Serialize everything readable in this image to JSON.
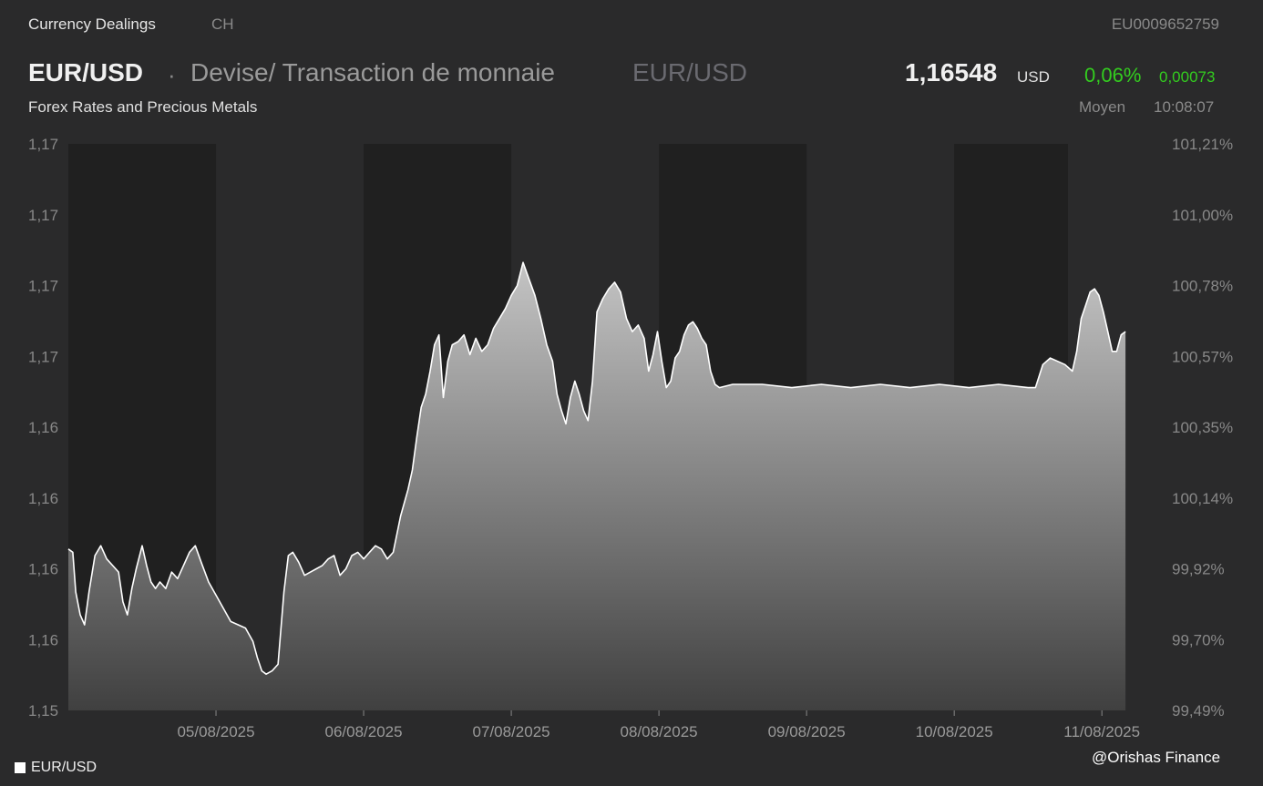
{
  "header": {
    "category": "Currency Dealings",
    "country": "CH",
    "isin": "EU0009652759",
    "pair": "EUR/USD",
    "separator": "·",
    "description": "Devise/ Transaction de monnaie",
    "pair_secondary": "EUR/USD",
    "price": "1,16548",
    "currency": "USD",
    "change_pct": "0,06%",
    "change_abs": "0,00073",
    "subtitle": "Forex Rates and Precious Metals",
    "price_type": "Moyen",
    "time": "10:08:07"
  },
  "legend": {
    "label": "EUR/USD",
    "swatch_color": "#ffffff"
  },
  "credit": "@Orishas Finance",
  "colors": {
    "background": "#2a2a2b",
    "shade": "#202020",
    "positive": "#33cc1f",
    "line": "#ffffff"
  },
  "chart_data": {
    "type": "area",
    "series": [
      {
        "name": "EUR/USD"
      }
    ],
    "left_ticks": [
      "1,17",
      "1,17",
      "1,17",
      "1,17",
      "1,16",
      "1,16",
      "1,16",
      "1,16",
      "1,15"
    ],
    "right_ticks": [
      "101,21%",
      "101,00%",
      "100,78%",
      "100,57%",
      "100,35%",
      "100,14%",
      "99,92%",
      "99,70%",
      "99,49%"
    ],
    "x_ticks": [
      "05/08/2025",
      "06/08/2025",
      "07/08/2025",
      "08/08/2025",
      "09/08/2025",
      "10/08/2025",
      "11/08/2025"
    ],
    "x_domain": [
      0,
      7.4
    ],
    "x_tick_positions": [
      1,
      2,
      3,
      4,
      5,
      6,
      7
    ],
    "y_domain_pct": [
      99.49,
      101.21
    ],
    "shaded_spans": [
      [
        0,
        1
      ],
      [
        2,
        3
      ],
      [
        4,
        5
      ],
      [
        6,
        6.77
      ]
    ],
    "points": [
      [
        0.0,
        99.98
      ],
      [
        0.03,
        99.97
      ],
      [
        0.05,
        99.85
      ],
      [
        0.08,
        99.78
      ],
      [
        0.11,
        99.75
      ],
      [
        0.14,
        99.85
      ],
      [
        0.18,
        99.96
      ],
      [
        0.22,
        99.99
      ],
      [
        0.26,
        99.95
      ],
      [
        0.3,
        99.93
      ],
      [
        0.34,
        99.91
      ],
      [
        0.37,
        99.82
      ],
      [
        0.4,
        99.78
      ],
      [
        0.43,
        99.86
      ],
      [
        0.46,
        99.92
      ],
      [
        0.5,
        99.99
      ],
      [
        0.53,
        99.93
      ],
      [
        0.56,
        99.88
      ],
      [
        0.59,
        99.86
      ],
      [
        0.62,
        99.88
      ],
      [
        0.66,
        99.86
      ],
      [
        0.7,
        99.91
      ],
      [
        0.74,
        99.89
      ],
      [
        0.78,
        99.93
      ],
      [
        0.82,
        99.97
      ],
      [
        0.86,
        99.99
      ],
      [
        0.9,
        99.94
      ],
      [
        0.95,
        99.88
      ],
      [
        1.0,
        99.84
      ],
      [
        1.05,
        99.8
      ],
      [
        1.1,
        99.76
      ],
      [
        1.15,
        99.75
      ],
      [
        1.2,
        99.74
      ],
      [
        1.25,
        99.7
      ],
      [
        1.28,
        99.65
      ],
      [
        1.31,
        99.61
      ],
      [
        1.34,
        99.6
      ],
      [
        1.38,
        99.61
      ],
      [
        1.42,
        99.63
      ],
      [
        1.46,
        99.85
      ],
      [
        1.49,
        99.96
      ],
      [
        1.52,
        99.97
      ],
      [
        1.56,
        99.94
      ],
      [
        1.6,
        99.9
      ],
      [
        1.64,
        99.91
      ],
      [
        1.68,
        99.92
      ],
      [
        1.72,
        99.93
      ],
      [
        1.76,
        99.95
      ],
      [
        1.8,
        99.96
      ],
      [
        1.84,
        99.9
      ],
      [
        1.88,
        99.92
      ],
      [
        1.92,
        99.96
      ],
      [
        1.96,
        99.97
      ],
      [
        2.0,
        99.95
      ],
      [
        2.04,
        99.97
      ],
      [
        2.08,
        99.99
      ],
      [
        2.12,
        99.98
      ],
      [
        2.16,
        99.95
      ],
      [
        2.2,
        99.97
      ],
      [
        2.25,
        100.08
      ],
      [
        2.3,
        100.16
      ],
      [
        2.33,
        100.22
      ],
      [
        2.36,
        100.32
      ],
      [
        2.39,
        100.41
      ],
      [
        2.42,
        100.45
      ],
      [
        2.45,
        100.52
      ],
      [
        2.48,
        100.6
      ],
      [
        2.51,
        100.63
      ],
      [
        2.54,
        100.44
      ],
      [
        2.57,
        100.55
      ],
      [
        2.6,
        100.6
      ],
      [
        2.64,
        100.61
      ],
      [
        2.68,
        100.63
      ],
      [
        2.72,
        100.57
      ],
      [
        2.76,
        100.62
      ],
      [
        2.8,
        100.58
      ],
      [
        2.84,
        100.6
      ],
      [
        2.88,
        100.65
      ],
      [
        2.92,
        100.68
      ],
      [
        2.96,
        100.71
      ],
      [
        3.0,
        100.75
      ],
      [
        3.04,
        100.78
      ],
      [
        3.08,
        100.85
      ],
      [
        3.12,
        100.8
      ],
      [
        3.16,
        100.75
      ],
      [
        3.2,
        100.68
      ],
      [
        3.24,
        100.6
      ],
      [
        3.28,
        100.55
      ],
      [
        3.31,
        100.45
      ],
      [
        3.34,
        100.4
      ],
      [
        3.37,
        100.36
      ],
      [
        3.4,
        100.44
      ],
      [
        3.43,
        100.49
      ],
      [
        3.46,
        100.45
      ],
      [
        3.49,
        100.4
      ],
      [
        3.52,
        100.37
      ],
      [
        3.55,
        100.49
      ],
      [
        3.58,
        100.7
      ],
      [
        3.62,
        100.74
      ],
      [
        3.66,
        100.77
      ],
      [
        3.7,
        100.79
      ],
      [
        3.74,
        100.76
      ],
      [
        3.78,
        100.68
      ],
      [
        3.82,
        100.64
      ],
      [
        3.86,
        100.66
      ],
      [
        3.9,
        100.62
      ],
      [
        3.93,
        100.52
      ],
      [
        3.96,
        100.57
      ],
      [
        3.99,
        100.64
      ],
      [
        4.02,
        100.55
      ],
      [
        4.05,
        100.47
      ],
      [
        4.08,
        100.49
      ],
      [
        4.11,
        100.56
      ],
      [
        4.14,
        100.58
      ],
      [
        4.17,
        100.63
      ],
      [
        4.2,
        100.66
      ],
      [
        4.23,
        100.67
      ],
      [
        4.26,
        100.65
      ],
      [
        4.29,
        100.62
      ],
      [
        4.32,
        100.6
      ],
      [
        4.35,
        100.52
      ],
      [
        4.38,
        100.48
      ],
      [
        4.41,
        100.47
      ],
      [
        4.5,
        100.48
      ],
      [
        4.7,
        100.48
      ],
      [
        4.9,
        100.47
      ],
      [
        5.1,
        100.48
      ],
      [
        5.3,
        100.47
      ],
      [
        5.5,
        100.48
      ],
      [
        5.7,
        100.47
      ],
      [
        5.9,
        100.48
      ],
      [
        6.1,
        100.47
      ],
      [
        6.3,
        100.48
      ],
      [
        6.5,
        100.47
      ],
      [
        6.55,
        100.47
      ],
      [
        6.6,
        100.54
      ],
      [
        6.65,
        100.56
      ],
      [
        6.7,
        100.55
      ],
      [
        6.75,
        100.54
      ],
      [
        6.8,
        100.52
      ],
      [
        6.83,
        100.58
      ],
      [
        6.86,
        100.68
      ],
      [
        6.89,
        100.72
      ],
      [
        6.92,
        100.76
      ],
      [
        6.95,
        100.77
      ],
      [
        6.98,
        100.75
      ],
      [
        7.01,
        100.7
      ],
      [
        7.04,
        100.64
      ],
      [
        7.07,
        100.58
      ],
      [
        7.1,
        100.58
      ],
      [
        7.13,
        100.63
      ],
      [
        7.16,
        100.64
      ]
    ]
  }
}
